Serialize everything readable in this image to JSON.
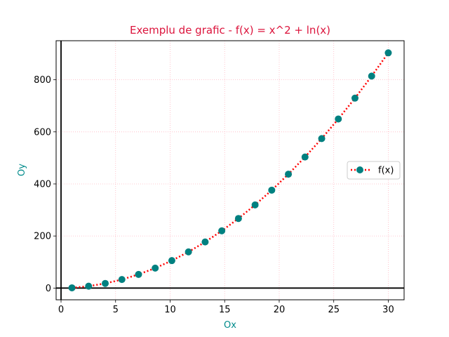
{
  "chart_data": {
    "type": "line",
    "title": "Exemplu de grafic - f(x) = x^2 + ln(x)",
    "xlabel": "Ox",
    "ylabel": "Oy",
    "xlim": [
      -0.45,
      31.45
    ],
    "ylim": [
      -45,
      950
    ],
    "xticks": [
      0,
      5,
      10,
      15,
      20,
      25,
      30
    ],
    "yticks": [
      0,
      200,
      400,
      600,
      800
    ],
    "grid": true,
    "legend_position": "center-right",
    "series": [
      {
        "name": "f(x)",
        "x": [
          1.0,
          2.526,
          4.053,
          5.579,
          7.105,
          8.632,
          10.158,
          11.684,
          13.211,
          14.737,
          16.263,
          17.789,
          19.316,
          20.842,
          22.368,
          23.895,
          25.421,
          26.947,
          28.474,
          30.0
        ],
        "y": [
          1.0,
          7.31,
          17.83,
          32.84,
          52.44,
          76.67,
          105.51,
          138.97,
          177.11,
          219.87,
          267.28,
          319.33,
          376.07,
          437.42,
          503.45,
          574.14,
          649.46,
          729.46,
          814.12,
          903.4
        ]
      }
    ],
    "colors": {
      "title": "#dc143c",
      "axis_label": "#008b8b",
      "line": "#ff0000",
      "marker": "#008080",
      "grid": "#ffb6c1",
      "zero_lines": "#000000"
    }
  }
}
